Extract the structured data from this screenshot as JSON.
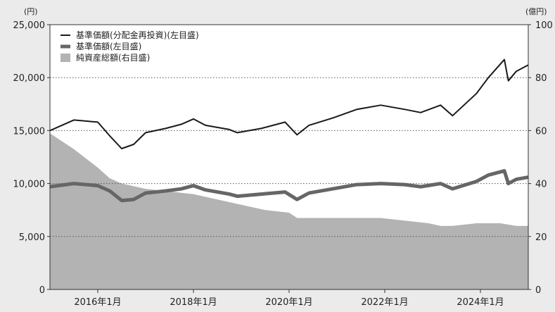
{
  "chart_data": {
    "type": "line",
    "title": "",
    "y_left_unit": "(円)",
    "y_right_unit": "(億円)",
    "ylim_left": [
      0,
      25000
    ],
    "ylim_right": [
      0,
      100
    ],
    "x_range": [
      "2015-01",
      "2025-01"
    ],
    "y_left_ticks": [
      "0",
      "5,000",
      "10,000",
      "15,000",
      "20,000",
      "25,000"
    ],
    "y_left_tick_values": [
      0,
      5000,
      10000,
      15000,
      20000,
      25000
    ],
    "y_right_ticks": [
      "0",
      "20",
      "40",
      "60",
      "80",
      "100"
    ],
    "y_right_tick_values": [
      0,
      20,
      40,
      60,
      80,
      100
    ],
    "x_ticks": [
      "2016年1月",
      "2018年1月",
      "2020年1月",
      "2022年1月",
      "2024年1月"
    ],
    "x_tick_dates": [
      "2016-01",
      "2018-01",
      "2020-01",
      "2022-01",
      "2024-01"
    ],
    "grid": "horizontal dotted",
    "legend_position": "top-left",
    "series": [
      {
        "name": "基準価額(分配金再投資)(左目盛)",
        "axis": "left",
        "style": "thin-line",
        "color": "#1a1a1a",
        "x": [
          "2015-01",
          "2015-07",
          "2016-01",
          "2016-04",
          "2016-07",
          "2016-10",
          "2017-01",
          "2017-06",
          "2017-10",
          "2018-01",
          "2018-04",
          "2018-10",
          "2018-12",
          "2019-06",
          "2019-12",
          "2020-03",
          "2020-06",
          "2020-12",
          "2021-06",
          "2021-12",
          "2022-06",
          "2022-10",
          "2023-03",
          "2023-06",
          "2023-12",
          "2024-03",
          "2024-07",
          "2024-08",
          "2024-10",
          "2025-01"
        ],
        "y": [
          15000,
          16000,
          15800,
          14500,
          13300,
          13700,
          14800,
          15200,
          15600,
          16100,
          15500,
          15100,
          14800,
          15200,
          15800,
          14600,
          15500,
          16200,
          17000,
          17400,
          17000,
          16700,
          17400,
          16400,
          18500,
          20000,
          21700,
          19700,
          20600,
          21200
        ]
      },
      {
        "name": "基準価額(左目盛)",
        "axis": "left",
        "style": "thick-line",
        "color": "#666666",
        "x": [
          "2015-01",
          "2015-07",
          "2016-01",
          "2016-04",
          "2016-07",
          "2016-10",
          "2017-01",
          "2017-06",
          "2017-10",
          "2018-01",
          "2018-04",
          "2018-10",
          "2018-12",
          "2019-06",
          "2019-12",
          "2020-03",
          "2020-06",
          "2020-12",
          "2021-06",
          "2021-12",
          "2022-06",
          "2022-10",
          "2023-03",
          "2023-06",
          "2023-12",
          "2024-03",
          "2024-07",
          "2024-08",
          "2024-10",
          "2025-01"
        ],
        "y": [
          9700,
          10000,
          9800,
          9300,
          8400,
          8500,
          9100,
          9300,
          9500,
          9800,
          9400,
          9000,
          8800,
          9000,
          9200,
          8500,
          9100,
          9500,
          9900,
          10000,
          9900,
          9700,
          10000,
          9500,
          10200,
          10800,
          11200,
          10000,
          10400,
          10600
        ]
      },
      {
        "name": "純資産総額(右目盛)",
        "axis": "right",
        "style": "area",
        "color": "#b3b3b3",
        "x": [
          "2015-01",
          "2015-07",
          "2016-01",
          "2016-04",
          "2016-07",
          "2017-01",
          "2017-07",
          "2018-01",
          "2018-07",
          "2019-01",
          "2019-07",
          "2020-01",
          "2020-03",
          "2020-12",
          "2021-06",
          "2021-12",
          "2022-06",
          "2022-12",
          "2023-03",
          "2023-06",
          "2023-12",
          "2024-06",
          "2024-10",
          "2025-01"
        ],
        "y": [
          59,
          53,
          46,
          42,
          40,
          38,
          37,
          36,
          34,
          32,
          30,
          29,
          27,
          27,
          27,
          27,
          26,
          25,
          24,
          24,
          25,
          25,
          24,
          24
        ]
      }
    ]
  }
}
